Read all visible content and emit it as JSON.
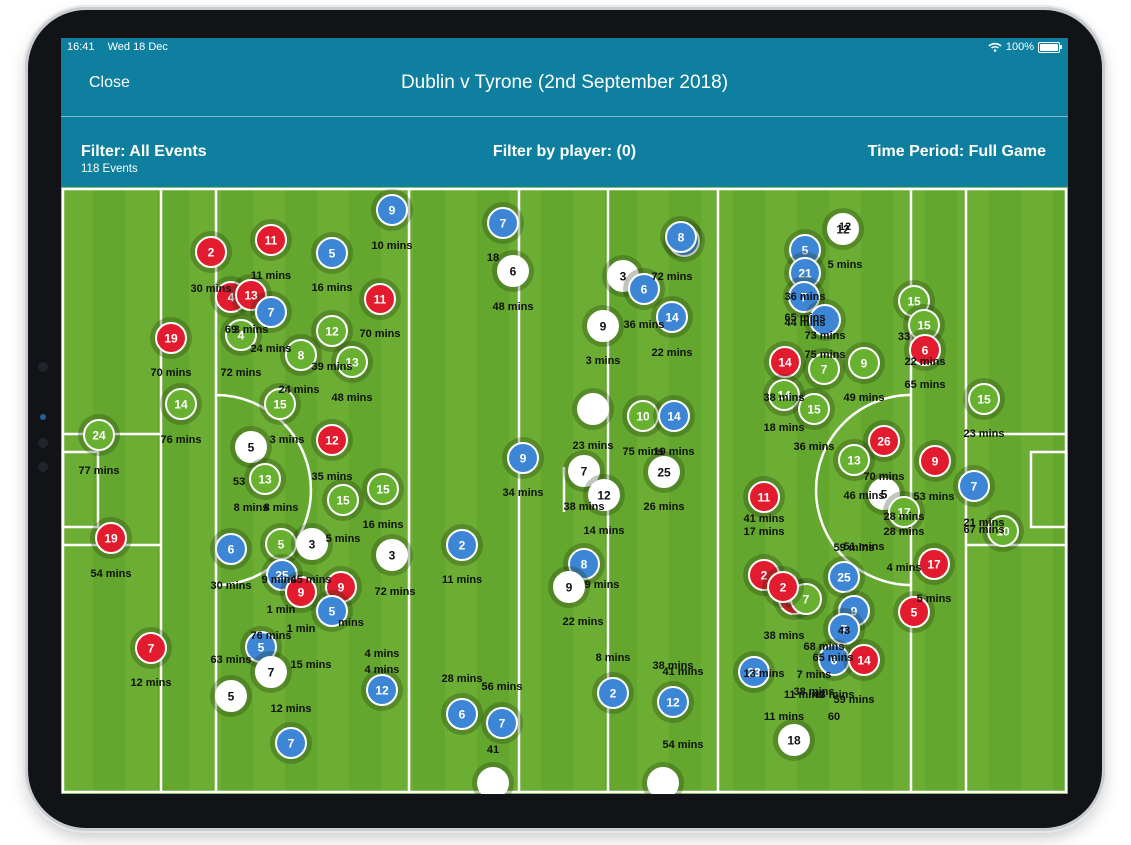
{
  "status": {
    "time": "16:41",
    "date": "Wed 18 Dec",
    "battery": "100%"
  },
  "nav": {
    "close_label": "Close",
    "title": "Dublin v Tyrone (2nd September 2018)"
  },
  "filters": {
    "events_filter": "Filter: All Events",
    "event_count": "118 Events",
    "player_filter": "Filter by player: (0)",
    "time_period": "Time Period: Full Game"
  },
  "colors": {
    "header": "#0e7f9e",
    "pitch": "#6aac33",
    "blue": "#3d86d6",
    "red": "#e21b2e",
    "green": "#67b030",
    "white": "#ffffff"
  },
  "events": [
    {
      "team": "blue",
      "num": "9"
    },
    {
      "team": "red",
      "num": "2"
    },
    {
      "team": "red",
      "num": "11"
    },
    {
      "team": "blue",
      "num": "5"
    },
    {
      "team": "red",
      "num": "4"
    },
    {
      "team": "red",
      "num": "13"
    },
    {
      "team": "blue",
      "num": "7"
    },
    {
      "team": "green",
      "num": "4"
    },
    {
      "team": "red",
      "num": "19"
    },
    {
      "team": "red",
      "num": "11"
    },
    {
      "team": "green",
      "num": "12"
    },
    {
      "team": "green",
      "num": "8"
    },
    {
      "team": "green",
      "num": "13"
    },
    {
      "team": "green",
      "num": "15"
    },
    {
      "team": "green",
      "num": "14"
    },
    {
      "team": "green",
      "num": "24"
    },
    {
      "team": "white",
      "num": "5"
    },
    {
      "team": "red",
      "num": "12"
    },
    {
      "team": "green",
      "num": "13"
    },
    {
      "team": "green",
      "num": "15"
    },
    {
      "team": "green",
      "num": "15"
    },
    {
      "team": "red",
      "num": "19"
    },
    {
      "team": "blue",
      "num": "6"
    },
    {
      "team": "green",
      "num": "5"
    },
    {
      "team": "white",
      "num": "3"
    },
    {
      "team": "white",
      "num": "3"
    },
    {
      "team": "blue",
      "num": "25"
    },
    {
      "team": "red",
      "num": "9"
    },
    {
      "team": "red",
      "num": "9"
    },
    {
      "team": "blue",
      "num": "5"
    },
    {
      "team": "red",
      "num": "7"
    },
    {
      "team": "blue",
      "num": "5"
    },
    {
      "team": "white",
      "num": "7"
    },
    {
      "team": "white",
      "num": "5"
    },
    {
      "team": "blue",
      "num": "12"
    },
    {
      "team": "blue",
      "num": "7"
    },
    {
      "team": "blue",
      "num": "7"
    },
    {
      "team": "white",
      "num": "6"
    },
    {
      "team": "blue",
      "num": "9"
    },
    {
      "team": "blue",
      "num": "2"
    },
    {
      "team": "blue",
      "num": "6"
    },
    {
      "team": "blue",
      "num": "7"
    },
    {
      "team": "white",
      "num": ""
    },
    {
      "team": "white",
      "num": "3"
    },
    {
      "team": "blue",
      "num": "6"
    },
    {
      "team": "white",
      "num": "9"
    },
    {
      "team": "blue",
      "num": "8"
    },
    {
      "team": "blue",
      "num": "14"
    },
    {
      "team": "white",
      "num": ""
    },
    {
      "team": "green",
      "num": "10"
    },
    {
      "team": "blue",
      "num": "14"
    },
    {
      "team": "white",
      "num": "7"
    },
    {
      "team": "white",
      "num": "12"
    },
    {
      "team": "white",
      "num": "25"
    },
    {
      "team": "blue",
      "num": "8"
    },
    {
      "team": "white",
      "num": "9"
    },
    {
      "team": "blue",
      "num": "2"
    },
    {
      "team": "blue",
      "num": "12"
    },
    {
      "team": "white",
      "num": ""
    },
    {
      "team": "white",
      "num": "12"
    },
    {
      "team": "blue",
      "num": "5"
    },
    {
      "team": "blue",
      "num": "21"
    },
    {
      "team": "blue",
      "num": "7"
    },
    {
      "team": "blue",
      "num": ""
    },
    {
      "team": "red",
      "num": "14"
    },
    {
      "team": "green",
      "num": "7"
    },
    {
      "team": "green",
      "num": "9"
    },
    {
      "team": "green",
      "num": "14"
    },
    {
      "team": "green",
      "num": "15"
    },
    {
      "team": "green",
      "num": "15"
    },
    {
      "team": "green",
      "num": "15"
    },
    {
      "team": "red",
      "num": "6"
    },
    {
      "team": "green",
      "num": "15"
    },
    {
      "team": "red",
      "num": "26"
    },
    {
      "team": "green",
      "num": "13"
    },
    {
      "team": "red",
      "num": "9"
    },
    {
      "team": "blue",
      "num": "7"
    },
    {
      "team": "green",
      "num": "10"
    },
    {
      "team": "red",
      "num": "11"
    },
    {
      "team": "white",
      "num": "5"
    },
    {
      "team": "green",
      "num": "17"
    },
    {
      "team": "red",
      "num": "2"
    },
    {
      "team": "red",
      "num": "15"
    },
    {
      "team": "blue",
      "num": "25"
    },
    {
      "team": "red",
      "num": "17"
    },
    {
      "team": "blue",
      "num": "9"
    },
    {
      "team": "red",
      "num": "5"
    },
    {
      "team": "blue",
      "num": "7"
    },
    {
      "team": "blue",
      "num": "6"
    },
    {
      "team": "red",
      "num": "14"
    },
    {
      "team": "blue",
      "num": "23"
    },
    {
      "team": "white",
      "num": "18"
    },
    {
      "team": "green",
      "num": "7"
    },
    {
      "team": "blue",
      "num": "8"
    },
    {
      "team": "red",
      "num": "2"
    }
  ],
  "labels": [
    "10 mins",
    "30 mins",
    "11 mins",
    "16 mins",
    "69",
    "3 mins",
    "24 mins",
    "70 mins",
    "70 mins",
    "72 mins",
    "39 mins",
    "48 mins",
    "24 mins",
    "76 mins",
    "77 mins",
    "3 mins",
    "53",
    "35 mins",
    "8 mins",
    "8 mins",
    "16 mins",
    "5 mins",
    "54 mins",
    "30 mins",
    "9 mins",
    "45 mins",
    "72 mins",
    "1 min",
    "1 min",
    "mins",
    "12 mins",
    "76 mins",
    "63 mins",
    "15 mins",
    "4 mins",
    "12 mins",
    "4 mins",
    "18",
    "48 mins",
    "11 mins",
    "28 mins",
    "56 mins",
    "41",
    "9 mins",
    "72 mins",
    "36 mins",
    "22 mins",
    "3 mins",
    "23 mins",
    "75 mins",
    "19 mins",
    "34 mins",
    "38 mins",
    "14 mins",
    "26 mins",
    "22 mins",
    "8 mins",
    "38 mins",
    "41 mins",
    "54 mins",
    "36 mins",
    "12",
    "5 mins",
    "65 mins",
    "44 mins",
    "73 mins",
    "75 mins",
    "38 mins",
    "49 mins",
    "18 mins",
    "33",
    "22 mins",
    "65 mins",
    "23 mins",
    "36 mins",
    "70 mins",
    "53 mins",
    "46 mins",
    "28 mins",
    "51 mins",
    "21 mins",
    "67 mins",
    "41 mins",
    "17 mins",
    "28 mins",
    "59 mins",
    "4 mins",
    "5 mins",
    "38 mins",
    "43",
    "65 mins",
    "13 mins",
    "7 mins",
    "11 mins",
    "68 mins",
    "43 mins",
    "60",
    "38 mins",
    "11 mins",
    "59 mins"
  ]
}
